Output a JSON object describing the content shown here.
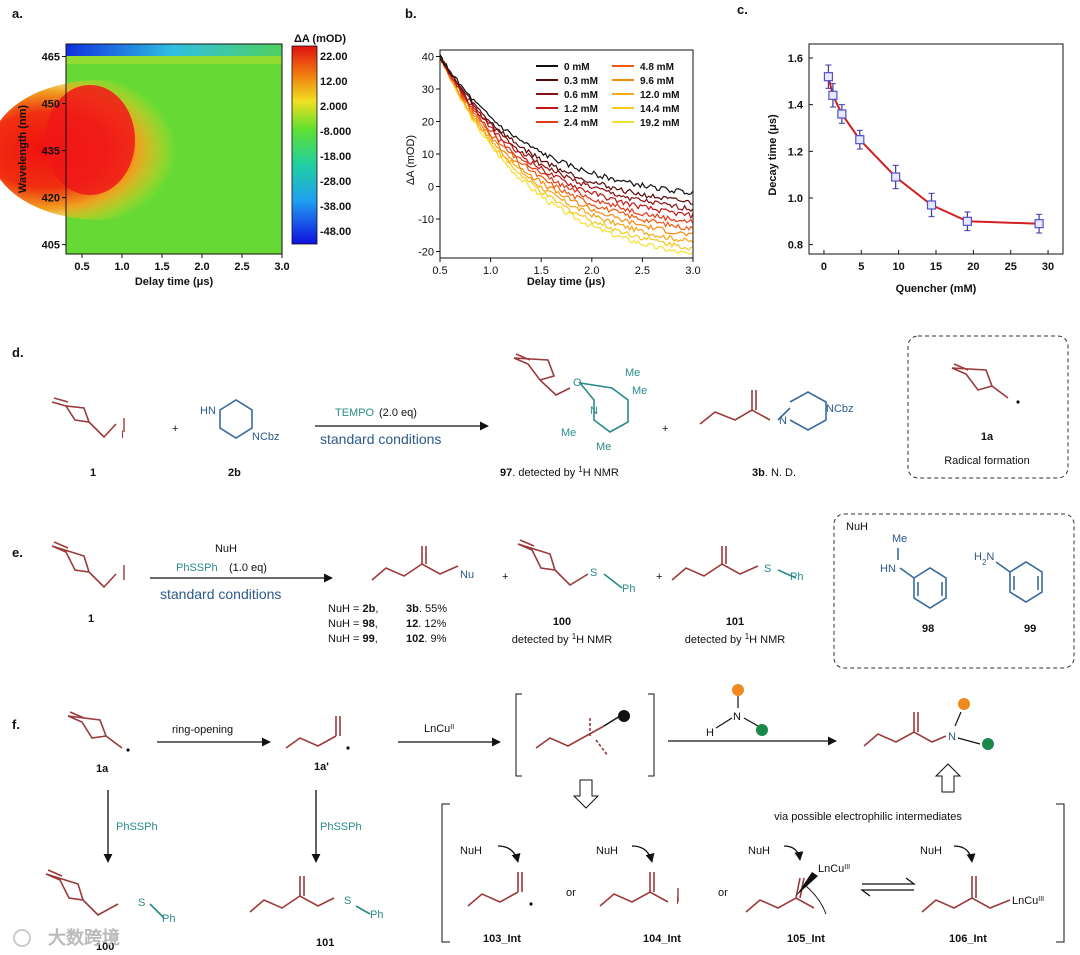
{
  "panels": {
    "a": "a.",
    "b": "b.",
    "c": "c.",
    "d": "d.",
    "e": "e.",
    "f": "f."
  },
  "chart_data": [
    {
      "type": "heatmap",
      "xlabel": "Delay time (μs)",
      "ylabel": "Wavelength (nm)",
      "xticks": [
        "0.5",
        "1.0",
        "1.5",
        "2.0",
        "2.5",
        "3.0"
      ],
      "yticks": [
        "465",
        "450",
        "435",
        "420",
        "405"
      ],
      "xlim": [
        0.3,
        3.0
      ],
      "ylim": [
        402,
        469
      ],
      "colorbar_title": "ΔA (mOD)",
      "colorbar_ticks": [
        "22.00",
        "12.00",
        "2.000",
        "-8.000",
        "-18.00",
        "-28.00",
        "-38.00",
        "-48.00"
      ]
    },
    {
      "type": "line",
      "xlabel": "Delay time (μs)",
      "ylabel": "ΔA (mOD)",
      "xlim": [
        0.5,
        3.0
      ],
      "ylim": [
        -22,
        42
      ],
      "xticks": [
        "0.5",
        "1.0",
        "1.5",
        "2.0",
        "2.5",
        "3.0"
      ],
      "yticks": [
        "40",
        "30",
        "20",
        "10",
        "0",
        "-10",
        "-20"
      ],
      "series": [
        {
          "name": "0 mM",
          "color": "#111111",
          "end": -2
        },
        {
          "name": "0.3 mM",
          "color": "#5a0a0a",
          "end": -5
        },
        {
          "name": "0.6 mM",
          "color": "#8b1010",
          "end": -7
        },
        {
          "name": "1.2 mM",
          "color": "#c01818",
          "end": -9
        },
        {
          "name": "2.4 mM",
          "color": "#e03a1a",
          "end": -11
        },
        {
          "name": "4.8 mM",
          "color": "#f05a10",
          "end": -13
        },
        {
          "name": "9.6 mM",
          "color": "#f58a10",
          "end": -15
        },
        {
          "name": "12.0 mM",
          "color": "#f5a818",
          "end": -17
        },
        {
          "name": "14.4 mM",
          "color": "#f5c820",
          "end": -19
        },
        {
          "name": "19.2 mM",
          "color": "#f5e030",
          "end": -21
        }
      ]
    },
    {
      "type": "scatter",
      "xlabel": "Quencher (mM)",
      "ylabel": "Decay time (μs)",
      "xlim": [
        -2,
        32
      ],
      "ylim": [
        0.76,
        1.66
      ],
      "xticks": [
        "0",
        "5",
        "10",
        "15",
        "20",
        "25",
        "30"
      ],
      "yticks": [
        "1.6",
        "1.4",
        "1.2",
        "1.0",
        "0.8"
      ],
      "x": [
        0.6,
        1.2,
        2.4,
        4.8,
        9.6,
        14.4,
        19.2,
        28.8
      ],
      "y": [
        1.52,
        1.44,
        1.36,
        1.25,
        1.09,
        0.97,
        0.9,
        0.89
      ],
      "err": [
        0.05,
        0.05,
        0.04,
        0.04,
        0.05,
        0.05,
        0.04,
        0.04
      ]
    }
  ],
  "d": {
    "reagent_top": "TEMPO",
    "reagent_top_amt": "(2.0 eq)",
    "reagent_bottom": "standard conditions",
    "label_1": "1",
    "label_2b": "2b",
    "plus": "+",
    "HN": "HN",
    "NCbz": "NCbz",
    "N": "N",
    "O": "O",
    "Me": "Me",
    "c97": "97",
    "c97_text": ".  detected by ",
    "nmr": "H NMR",
    "sup1": "1",
    "c3b": "3b",
    "c3b_text": ". N. D.",
    "box_label": "1a",
    "box_text": "Radical formation"
  },
  "e": {
    "reagent1": "NuH",
    "reagent2": "PhSSPh",
    "reagent2_amt": "(1.0 eq)",
    "reagent_bottom": "standard conditions",
    "label_1": "1",
    "Nu": "Nu",
    "S": "S",
    "Ph": "Ph",
    "rows": [
      {
        "nuh": "NuH = ",
        "nu": "2b",
        "comma": ",",
        "prod": "3b",
        "yield": ". 55%"
      },
      {
        "nuh": "NuH = ",
        "nu": "98",
        "comma": ",",
        "prod": "12",
        "yield": ". 12%"
      },
      {
        "nuh": "NuH = ",
        "nu": "99",
        "comma": ",",
        "prod": "102",
        "yield": ". 9%"
      }
    ],
    "c100": "100",
    "c101": "101",
    "det": "detected by ",
    "sup1": "1",
    "nmr": "H NMR",
    "box_nuh": "NuH",
    "Me": "Me",
    "HN": "HN",
    "H2N": "H",
    "H2N_sub": "2",
    "H2N_N": "N",
    "c98": "98",
    "c99": "99"
  },
  "f": {
    "l1a": "1a",
    "l1a_prime": "1a'",
    "ring_opening": "ring-opening",
    "lncu": "LnCu",
    "lncu_sup": "II",
    "phssph": "PhSSPh",
    "N": "N",
    "H": "H",
    "S": "S",
    "Ph": "Ph",
    "c100": "100",
    "c101": "101",
    "via": "via possible electrophilic intermediates",
    "nuh": "NuH",
    "or": "or",
    "I": "I",
    "lncu3": "LnCu",
    "sup3": "III",
    "int103": "103_Int",
    "int104": "104_Int",
    "int105": "105_Int",
    "int106": "106_Int"
  },
  "watermark": "大数跨境"
}
